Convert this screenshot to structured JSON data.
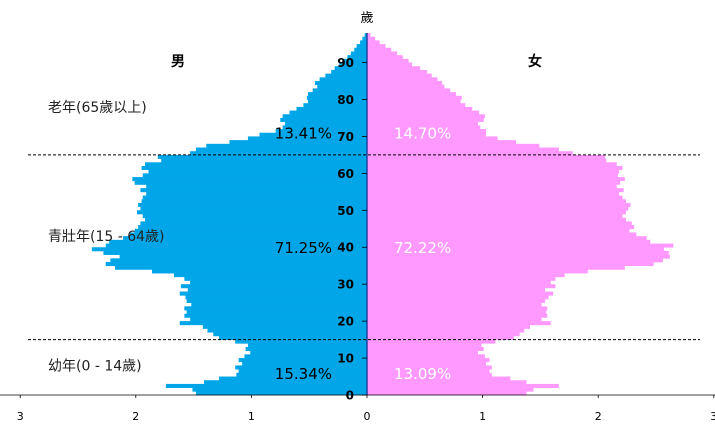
{
  "chart_data": {
    "type": "bar",
    "chart_subtype": "population-pyramid",
    "title": "",
    "yunit": "歲",
    "xlim": [
      -3,
      3
    ],
    "xticks": [
      -3,
      -2,
      -1,
      0,
      1,
      2,
      3
    ],
    "xtick_labels": [
      "3",
      "2",
      "1",
      "0",
      "1",
      "2",
      "3"
    ],
    "ylim": [
      0,
      98
    ],
    "yticks": [
      0,
      10,
      20,
      30,
      40,
      50,
      60,
      70,
      80,
      90
    ],
    "ytick_labels": [
      "0",
      "10",
      "20",
      "30",
      "40",
      "50",
      "60",
      "70",
      "80",
      "90"
    ],
    "divider_ages": [
      15,
      65
    ],
    "colors": {
      "male": "#00a6e8",
      "female": "#ff99ff"
    },
    "series": [
      {
        "name": "男",
        "values": [
          1.48,
          1.51,
          1.74,
          1.41,
          1.28,
          1.13,
          1.11,
          1.14,
          1.08,
          1.11,
          1.06,
          1.01,
          1.05,
          1.03,
          1.14,
          1.28,
          1.33,
          1.38,
          1.42,
          1.62,
          1.53,
          1.58,
          1.56,
          1.58,
          1.52,
          1.56,
          1.57,
          1.62,
          1.55,
          1.61,
          1.53,
          1.58,
          1.67,
          1.86,
          2.18,
          2.26,
          2.22,
          2.14,
          2.28,
          2.38,
          2.26,
          2.23,
          2.11,
          2.05,
          2.01,
          1.98,
          1.96,
          1.92,
          1.94,
          1.99,
          1.96,
          1.98,
          1.95,
          1.94,
          1.91,
          1.96,
          1.91,
          2.01,
          2.03,
          1.94,
          1.89,
          1.95,
          1.92,
          1.78,
          1.81,
          1.53,
          1.48,
          1.39,
          1.19,
          1.03,
          0.93,
          0.79,
          0.73,
          0.71,
          0.75,
          0.73,
          0.67,
          0.61,
          0.55,
          0.51,
          0.52,
          0.51,
          0.47,
          0.43,
          0.45,
          0.41,
          0.36,
          0.31,
          0.28,
          0.24,
          0.21,
          0.17,
          0.14,
          0.11,
          0.09,
          0.06,
          0.04,
          0.02
        ]
      },
      {
        "name": "女",
        "values": [
          1.38,
          1.44,
          1.66,
          1.38,
          1.24,
          1.08,
          1.06,
          1.08,
          1.03,
          1.06,
          1.02,
          0.96,
          1.01,
          0.99,
          1.11,
          1.27,
          1.32,
          1.36,
          1.41,
          1.59,
          1.51,
          1.56,
          1.55,
          1.56,
          1.51,
          1.54,
          1.57,
          1.61,
          1.54,
          1.63,
          1.59,
          1.63,
          1.71,
          1.91,
          2.23,
          2.48,
          2.56,
          2.62,
          2.61,
          2.57,
          2.65,
          2.45,
          2.42,
          2.33,
          2.27,
          2.31,
          2.29,
          2.24,
          2.21,
          2.24,
          2.26,
          2.28,
          2.24,
          2.21,
          2.18,
          2.22,
          2.16,
          2.19,
          2.23,
          2.17,
          2.18,
          2.21,
          2.16,
          2.07,
          2.06,
          1.78,
          1.66,
          1.49,
          1.29,
          1.13,
          1.03,
          1.03,
          0.98,
          0.96,
          1.01,
          1.02,
          0.97,
          0.91,
          0.85,
          0.81,
          0.82,
          0.77,
          0.72,
          0.67,
          0.65,
          0.61,
          0.56,
          0.52,
          0.46,
          0.39,
          0.36,
          0.31,
          0.26,
          0.21,
          0.16,
          0.11,
          0.07,
          0.03
        ]
      }
    ],
    "annotations": {
      "gender_labels": {
        "male": "男",
        "female": "女"
      },
      "group_labels": [
        "老年(65歲以上)",
        "青壯年(15 - 64歲)",
        "幼年(0 - 14歲)"
      ],
      "group_labels_age": [
        78,
        43,
        8
      ],
      "male_percent": [
        "13.41%",
        "71.25%",
        "15.34%"
      ],
      "female_percent": [
        "14.70%",
        "72.22%",
        "13.09%"
      ],
      "percent_age": [
        71,
        40,
        6
      ]
    }
  }
}
